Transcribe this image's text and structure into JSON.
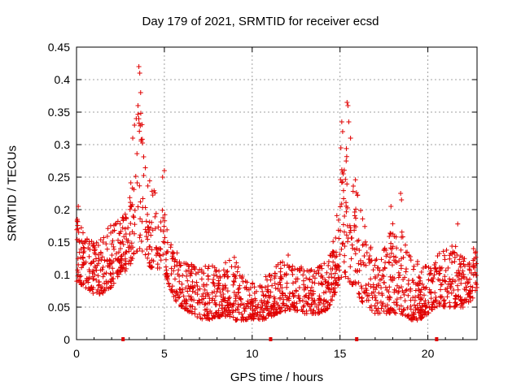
{
  "chart_data": {
    "type": "scatter",
    "title": "Day 179 of 2021, SRMTID for receiver ecsd",
    "xlabel": "GPS time / hours",
    "ylabel": "SRMTID / TECUs",
    "xlim": [
      0,
      22.8
    ],
    "ylim": [
      0,
      0.45
    ],
    "x_ticks": [
      0,
      5,
      10,
      15,
      20
    ],
    "x_tick_labels": [
      "0",
      "5",
      "10",
      "15",
      "20"
    ],
    "y_ticks": [
      0,
      0.05,
      0.1,
      0.15,
      0.2,
      0.25,
      0.3,
      0.35,
      0.4,
      0.45
    ],
    "y_tick_labels": [
      "0",
      "0.05",
      "0.1",
      "0.15",
      "0.2",
      "0.25",
      "0.3",
      "0.35",
      "0.4",
      "0.45"
    ],
    "grid": true,
    "marker": "+",
    "color": "#e00000",
    "baseline_markers_x": [
      2.65,
      11.05,
      15.95,
      20.5
    ],
    "envelope": {
      "x": [
        0,
        0.5,
        1,
        1.5,
        2,
        2.5,
        3,
        3.3,
        3.6,
        3.9,
        4.2,
        4.6,
        5,
        5.3,
        5.6,
        6,
        6.5,
        7,
        7.5,
        8,
        8.5,
        9,
        9.5,
        10,
        10.5,
        11,
        11.5,
        12,
        12.5,
        13,
        13.5,
        14,
        14.4,
        14.7,
        15,
        15.2,
        15.5,
        15.8,
        16.2,
        16.6,
        17,
        17.5,
        18,
        18.5,
        19,
        19.5,
        20,
        20.5,
        21,
        21.5,
        22,
        22.5,
        22.8
      ],
      "lo": [
        0.09,
        0.08,
        0.07,
        0.07,
        0.08,
        0.1,
        0.11,
        0.13,
        0.14,
        0.13,
        0.11,
        0.11,
        0.1,
        0.08,
        0.06,
        0.05,
        0.04,
        0.03,
        0.03,
        0.035,
        0.035,
        0.03,
        0.03,
        0.03,
        0.03,
        0.035,
        0.04,
        0.045,
        0.045,
        0.04,
        0.04,
        0.04,
        0.05,
        0.07,
        0.09,
        0.1,
        0.09,
        0.08,
        0.06,
        0.05,
        0.04,
        0.04,
        0.04,
        0.04,
        0.03,
        0.03,
        0.04,
        0.05,
        0.05,
        0.05,
        0.05,
        0.06,
        0.08
      ],
      "hi": [
        0.2,
        0.16,
        0.15,
        0.16,
        0.18,
        0.19,
        0.23,
        0.29,
        0.38,
        0.28,
        0.24,
        0.22,
        0.2,
        0.16,
        0.14,
        0.12,
        0.12,
        0.11,
        0.12,
        0.12,
        0.12,
        0.13,
        0.1,
        0.09,
        0.1,
        0.1,
        0.12,
        0.12,
        0.12,
        0.11,
        0.11,
        0.12,
        0.14,
        0.17,
        0.24,
        0.33,
        0.3,
        0.26,
        0.21,
        0.15,
        0.14,
        0.14,
        0.18,
        0.17,
        0.13,
        0.12,
        0.12,
        0.13,
        0.14,
        0.15,
        0.13,
        0.13,
        0.14
      ]
    },
    "outliers": [
      {
        "x": 3.55,
        "y": 0.42
      },
      {
        "x": 3.6,
        "y": 0.41
      },
      {
        "x": 3.65,
        "y": 0.38
      },
      {
        "x": 3.4,
        "y": 0.34
      },
      {
        "x": 3.3,
        "y": 0.33
      },
      {
        "x": 3.5,
        "y": 0.36
      },
      {
        "x": 3.2,
        "y": 0.31
      },
      {
        "x": 5.0,
        "y": 0.26
      },
      {
        "x": 4.9,
        "y": 0.25
      },
      {
        "x": 15.4,
        "y": 0.365
      },
      {
        "x": 15.45,
        "y": 0.36
      },
      {
        "x": 15.5,
        "y": 0.335
      },
      {
        "x": 15.1,
        "y": 0.335
      },
      {
        "x": 15.15,
        "y": 0.32
      },
      {
        "x": 15.6,
        "y": 0.31
      },
      {
        "x": 15.05,
        "y": 0.295
      },
      {
        "x": 18.45,
        "y": 0.225
      },
      {
        "x": 18.5,
        "y": 0.215
      },
      {
        "x": 17.9,
        "y": 0.205
      },
      {
        "x": 21.7,
        "y": 0.178
      },
      {
        "x": 0.1,
        "y": 0.205
      },
      {
        "x": 22.6,
        "y": 0.14
      },
      {
        "x": 12.05,
        "y": 0.13
      }
    ]
  }
}
